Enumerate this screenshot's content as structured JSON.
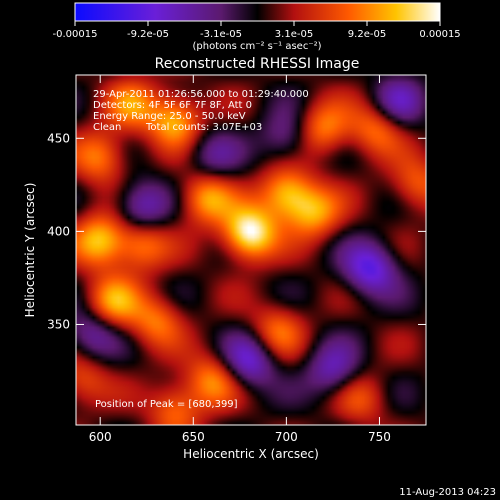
{
  "chart_data": {
    "type": "heatmap",
    "title": "Reconstructed RHESSI Image",
    "xlabel": "Heliocentric X (arcsec)",
    "ylabel": "Heliocentric Y (arcsec)",
    "xlim": [
      587,
      775
    ],
    "ylim": [
      296,
      484
    ],
    "x_ticks": [
      "600",
      "650",
      "700",
      "750"
    ],
    "y_ticks": [
      "350",
      "400",
      "450"
    ],
    "colorbar": {
      "label": "(photons cm⁻² s⁻¹ asec⁻²)",
      "range": [
        -0.00015,
        0.00015
      ],
      "ticks": [
        "-0.00015",
        "-9.2e-05",
        "-3.1e-05",
        "3.1e-05",
        "9.2e-05",
        "0.00015"
      ],
      "colormap": "blue-purple-red-yellow-white"
    },
    "info": {
      "time_range": "29-Apr-2011 01:26:56.000 to 01:29:40.000",
      "detectors": "Detectors: 4F 5F 6F 7F 8F, Att 0",
      "energy": "Energy Range: 25.0 - 50.0 keV",
      "method": "Clean",
      "counts": "Total counts: 3.07E+03"
    },
    "peak_label": "Position of Peak = [680,399]",
    "peak": [
      680,
      399
    ],
    "sources": [
      {
        "x": 680,
        "y": 399,
        "amp": 1.0
      },
      {
        "x": 700,
        "y": 420,
        "amp": 0.75
      },
      {
        "x": 715,
        "y": 410,
        "amp": 0.6
      },
      {
        "x": 657,
        "y": 418,
        "amp": 0.65
      },
      {
        "x": 640,
        "y": 460,
        "amp": 0.7
      },
      {
        "x": 600,
        "y": 395,
        "amp": 0.75
      },
      {
        "x": 622,
        "y": 393,
        "amp": 0.55
      },
      {
        "x": 607,
        "y": 362,
        "amp": 0.6
      },
      {
        "x": 630,
        "y": 352,
        "amp": 0.5
      },
      {
        "x": 600,
        "y": 440,
        "amp": 0.55
      },
      {
        "x": 617,
        "y": 468,
        "amp": 0.5
      },
      {
        "x": 720,
        "y": 455,
        "amp": 0.55
      },
      {
        "x": 748,
        "y": 455,
        "amp": 0.5
      },
      {
        "x": 695,
        "y": 347,
        "amp": 0.45
      },
      {
        "x": 660,
        "y": 320,
        "amp": 0.55
      },
      {
        "x": 640,
        "y": 305,
        "amp": 0.5
      },
      {
        "x": 770,
        "y": 425,
        "amp": 0.45
      },
      {
        "x": 740,
        "y": 310,
        "amp": 0.35
      },
      {
        "x": 590,
        "y": 320,
        "amp": 0.4
      },
      {
        "x": 745,
        "y": 380,
        "amp": -0.7
      },
      {
        "x": 680,
        "y": 330,
        "amp": -0.6
      },
      {
        "x": 725,
        "y": 325,
        "amp": -0.5
      },
      {
        "x": 622,
        "y": 413,
        "amp": -0.55
      },
      {
        "x": 595,
        "y": 345,
        "amp": -0.45
      },
      {
        "x": 760,
        "y": 470,
        "amp": -0.45
      },
      {
        "x": 700,
        "y": 450,
        "amp": -0.4
      },
      {
        "x": 660,
        "y": 440,
        "amp": -0.35
      }
    ]
  },
  "footer": {
    "date": "11-Aug-2013 04:23"
  }
}
